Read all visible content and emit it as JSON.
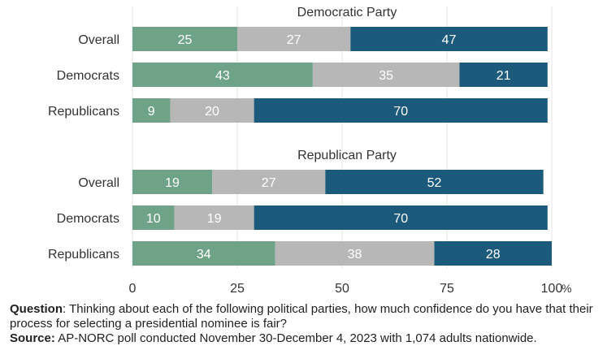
{
  "chart_data": {
    "type": "bar",
    "orientation": "horizontal",
    "stacked": true,
    "xlim": [
      0,
      100
    ],
    "x_ticks": [
      "0",
      "25",
      "50",
      "75",
      "100"
    ],
    "x_unit": "%",
    "grid": true,
    "colors": [
      "#6fa387",
      "#b7b7b7",
      "#1b5a7a"
    ],
    "panels": [
      {
        "title": "Democratic Party",
        "categories": [
          "Overall",
          "Democrats",
          "Republicans"
        ],
        "series": [
          {
            "values": [
              25,
              43,
              9
            ]
          },
          {
            "values": [
              27,
              35,
              20
            ]
          },
          {
            "values": [
              47,
              21,
              70
            ]
          }
        ]
      },
      {
        "title": "Republican Party",
        "categories": [
          "Overall",
          "Democrats",
          "Republicans"
        ],
        "series": [
          {
            "values": [
              19,
              10,
              34
            ]
          },
          {
            "values": [
              27,
              19,
              38
            ]
          },
          {
            "values": [
              52,
              70,
              28
            ]
          }
        ]
      }
    ]
  },
  "footer": {
    "question_label": "Question",
    "question_text": ": Thinking about each of the following political parties, how much confidence do you have that their process for selecting a presidential nominee is fair?",
    "source_label": "Source:",
    "source_text": " AP-NORC poll conducted November 30-December 4, 2023 with 1,074 adults nationwide."
  }
}
